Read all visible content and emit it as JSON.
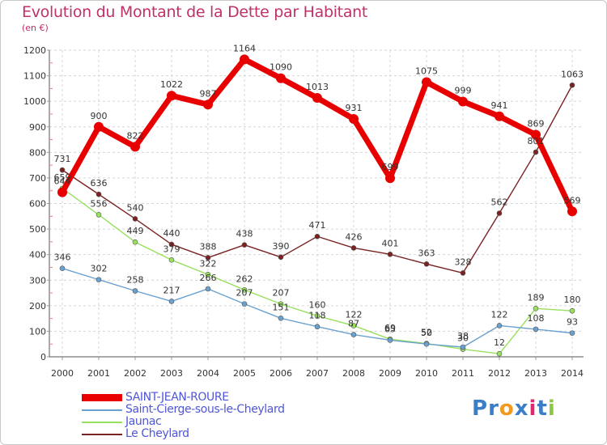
{
  "title": "Evolution du Montant de la Dette par Habitant",
  "unit_label": "(en €)",
  "logo": {
    "letters": [
      "P",
      "r",
      "o",
      "x",
      "i",
      "t",
      "i"
    ],
    "colors": [
      "#3b7ec8",
      "#3b7ec8",
      "#f29a1d",
      "#3b7ec8",
      "#e1286e",
      "#3b7ec8",
      "#8fc73e"
    ]
  },
  "chart_data": {
    "type": "line",
    "title": "Evolution du Montant de la Dette par Habitant",
    "ylabel": "(en €)",
    "x": [
      "2000",
      "2001",
      "2002",
      "2003",
      "2004",
      "2005",
      "2006",
      "2007",
      "2008",
      "2009",
      "2010",
      "2011",
      "2012",
      "2013",
      "2014"
    ],
    "ylim": [
      0,
      1200
    ],
    "yticks": [
      "0",
      "100",
      "200",
      "300",
      "400",
      "500",
      "600",
      "700",
      "800",
      "900",
      "1000",
      "1100",
      "1200"
    ],
    "grid": true,
    "legend_position": "bottom-left",
    "series": [
      {
        "name": "Le Cheylard",
        "color": "#7a2222",
        "values": [
          731,
          636,
          540,
          440,
          388,
          438,
          390,
          471,
          426,
          401,
          363,
          328,
          562,
          801,
          1063
        ]
      },
      {
        "name": "Jaunac",
        "color": "#99e05e",
        "values": [
          659,
          556,
          449,
          379,
          322,
          262,
          207,
          160,
          122,
          69,
          52,
          30,
          12,
          189,
          180
        ]
      },
      {
        "name": "Saint-Cierge-sous-le-Cheylard",
        "color": "#6aa1cf",
        "values": [
          346,
          302,
          258,
          217,
          266,
          207,
          151,
          118,
          87,
          65,
          50,
          38,
          122,
          108,
          93
        ]
      },
      {
        "name": "SAINT-JEAN-ROURE",
        "color": "#e80000",
        "values": [
          644,
          900,
          822,
          1022,
          987,
          1164,
          1090,
          1013,
          931,
          699,
          1075,
          999,
          941,
          869,
          569
        ]
      }
    ],
    "data_labels": {
      "Le Cheylard": [
        "731",
        "636",
        "540",
        "440",
        "388",
        "438",
        "390",
        "471",
        "426",
        "401",
        "363",
        "328",
        "562",
        "801",
        "1063"
      ],
      "Jaunac": [
        "659",
        "556",
        "449",
        "379",
        "322",
        "262",
        "207",
        "160",
        "122",
        "69",
        "52",
        "30",
        "12",
        "189",
        "180"
      ],
      "Saint-Cierge-sous-le-Cheylard": [
        "346",
        "302",
        "258",
        "217",
        "266",
        "207",
        "151",
        "118",
        "87",
        "65",
        "50",
        "38",
        "122",
        "108",
        "93"
      ],
      "SAINT-JEAN-ROURE": [
        "644",
        "900",
        "822",
        "1022",
        "987",
        "1164",
        "1090",
        "1013",
        "931",
        "699",
        "1075",
        "999",
        "941",
        "869",
        "569"
      ]
    }
  },
  "legend": [
    {
      "label": "SAINT-JEAN-ROURE",
      "color": "#e80000",
      "text_color": "#4f56d8"
    },
    {
      "label": "Saint-Cierge-sous-le-Cheylard",
      "color": "#6aa1cf",
      "text_color": "#4f56d8"
    },
    {
      "label": "Jaunac",
      "color": "#99e05e",
      "text_color": "#4f56d8"
    },
    {
      "label": "Le Cheylard",
      "color": "#7a2222",
      "text_color": "#4f56d8"
    }
  ]
}
